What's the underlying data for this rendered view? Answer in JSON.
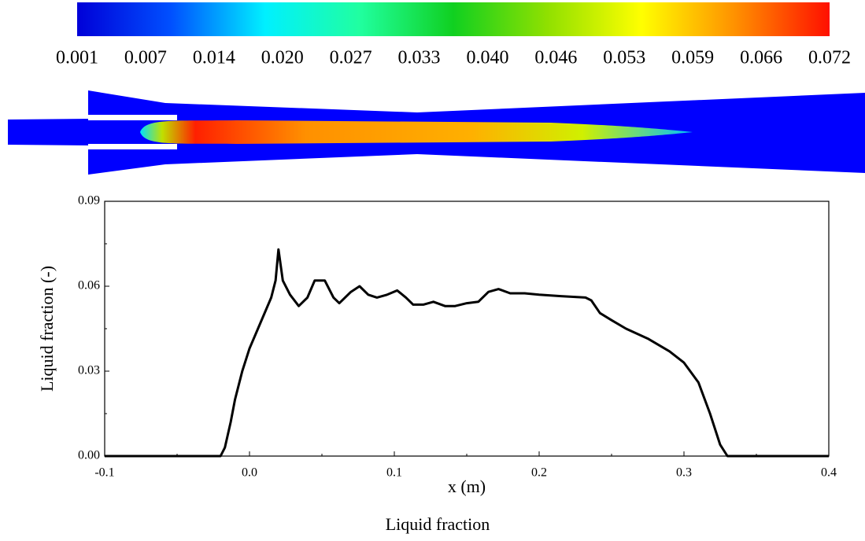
{
  "chart_data": {
    "type": "line",
    "colorbar": {
      "ticks": [
        {
          "value": 0.001,
          "label": "0.001"
        },
        {
          "value": 0.007,
          "label": "0.007"
        },
        {
          "value": 0.014,
          "label": "0.014"
        },
        {
          "value": 0.02,
          "label": "0.020"
        },
        {
          "value": 0.027,
          "label": "0.027"
        },
        {
          "value": 0.033,
          "label": "0.033"
        },
        {
          "value": 0.04,
          "label": "0.040"
        },
        {
          "value": 0.046,
          "label": "0.046"
        },
        {
          "value": 0.053,
          "label": "0.053"
        },
        {
          "value": 0.059,
          "label": "0.059"
        },
        {
          "value": 0.066,
          "label": "0.066"
        },
        {
          "value": 0.072,
          "label": "0.072"
        }
      ]
    },
    "xlabel": "x (m)",
    "ylabel": "Liquid fraction (-)",
    "caption": "Liquid fraction",
    "xlim": [
      -0.1,
      0.4
    ],
    "ylim": [
      0,
      0.09
    ],
    "xticks": [
      -0.1,
      {
        "value": 0,
        "label": "0.0"
      },
      0.1,
      0.2,
      0.3,
      0.4
    ],
    "yticks": [
      {
        "value": 0,
        "label": "0.00"
      },
      {
        "value": 0.03,
        "label": "0.03"
      },
      {
        "value": 0.06,
        "label": "0.06"
      },
      {
        "value": 0.09,
        "label": "0.09"
      }
    ],
    "series": [
      {
        "color": "#000000",
        "x": [
          -0.1,
          -0.02,
          -0.017,
          -0.013,
          -0.01,
          -0.005,
          0.0,
          0.005,
          0.01,
          0.015,
          0.018,
          0.02,
          0.023,
          0.028,
          0.034,
          0.04,
          0.045,
          0.052,
          0.058,
          0.062,
          0.07,
          0.076,
          0.082,
          0.088,
          0.095,
          0.102,
          0.108,
          0.113,
          0.12,
          0.127,
          0.135,
          0.142,
          0.15,
          0.158,
          0.165,
          0.172,
          0.18,
          0.19,
          0.2,
          0.215,
          0.232,
          0.236,
          0.242,
          0.25,
          0.26,
          0.275,
          0.29,
          0.3,
          0.31,
          0.318,
          0.325,
          0.33,
          0.4
        ],
        "values": [
          0,
          0,
          0.003,
          0.012,
          0.02,
          0.03,
          0.038,
          0.044,
          0.05,
          0.056,
          0.062,
          0.073,
          0.062,
          0.057,
          0.053,
          0.056,
          0.062,
          0.062,
          0.056,
          0.054,
          0.058,
          0.06,
          0.057,
          0.056,
          0.057,
          0.0585,
          0.056,
          0.0535,
          0.0535,
          0.0545,
          0.053,
          0.053,
          0.054,
          0.0545,
          0.058,
          0.059,
          0.0575,
          0.0575,
          0.057,
          0.0565,
          0.056,
          0.055,
          0.0505,
          0.048,
          0.045,
          0.0415,
          0.037,
          0.033,
          0.026,
          0.015,
          0.004,
          0,
          0
        ]
      }
    ]
  }
}
